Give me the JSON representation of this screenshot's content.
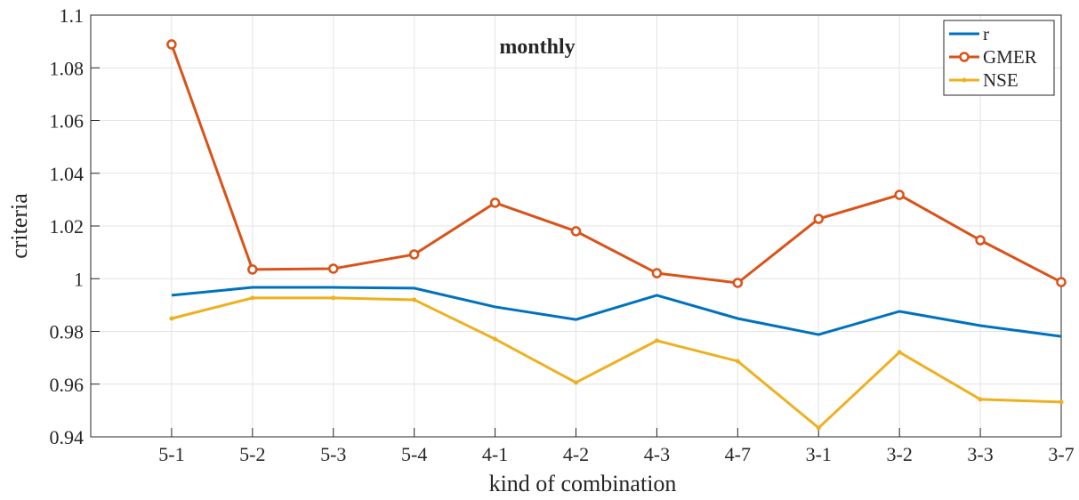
{
  "chart_data": {
    "type": "line",
    "title": "monthly",
    "x_label": "kind of combination",
    "y_label": "criteria",
    "categories": [
      null,
      "5-1",
      "5-2",
      "5-3",
      "5-4",
      "4-1",
      "4-2",
      "4-3",
      "4-7",
      "3-1",
      "3-2",
      "3-3",
      "3-7"
    ],
    "series": [
      {
        "name": "r",
        "color": "#0072bd",
        "marker": "none",
        "values": [
          null,
          0.9937,
          0.9967,
          0.9967,
          0.9964,
          0.9893,
          0.9845,
          0.9937,
          0.9849,
          0.9788,
          0.9876,
          0.9822,
          0.9781
        ]
      },
      {
        "name": "GMER",
        "color": "#d95319",
        "marker": "circle",
        "values": [
          null,
          1.0889,
          1.0035,
          1.0038,
          1.0092,
          1.0288,
          1.018,
          1.0021,
          0.9984,
          1.0227,
          1.0318,
          1.0146,
          0.9987
        ]
      },
      {
        "name": "NSE",
        "color": "#edb120",
        "marker": "dot",
        "values": [
          null,
          0.9849,
          0.9927,
          0.9927,
          0.992,
          0.9771,
          0.9606,
          0.9765,
          0.9687,
          0.9434,
          0.9721,
          0.9542,
          0.9532
        ]
      }
    ],
    "ylim": [
      0.94,
      1.1
    ],
    "yticks": [
      0.94,
      0.96,
      0.98,
      1,
      1.02,
      1.04,
      1.06,
      1.08,
      1.1
    ],
    "grid": true,
    "legend": "upper-right"
  }
}
